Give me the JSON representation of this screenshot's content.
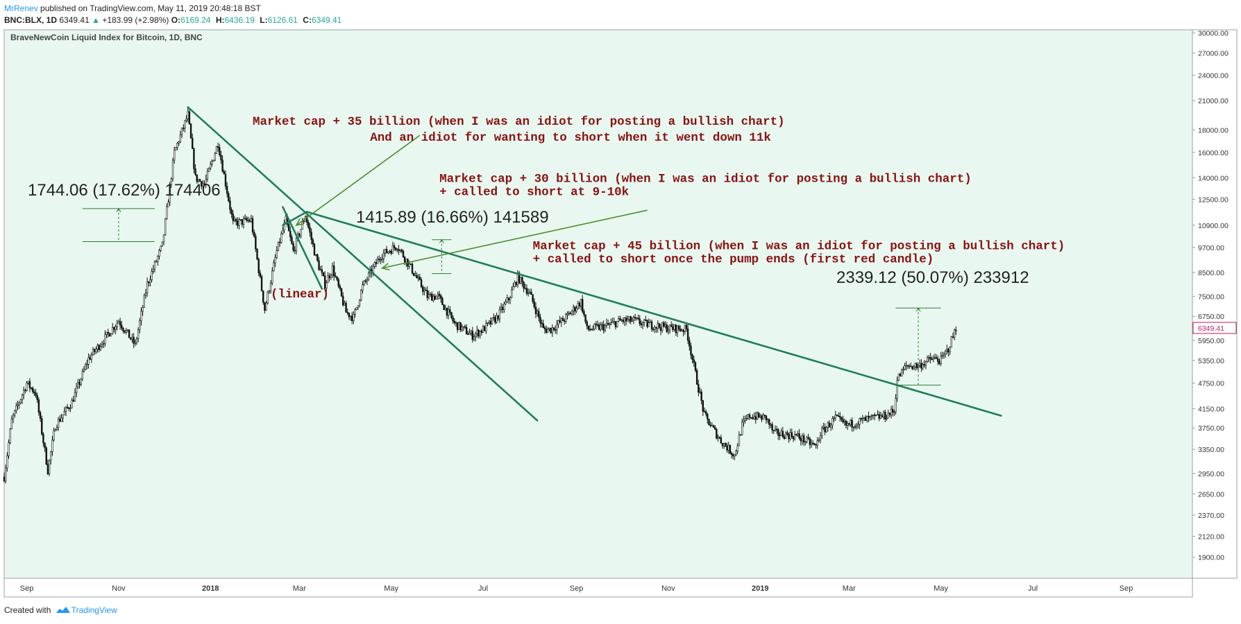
{
  "header": {
    "author": "MrRenev",
    "published_text": "published on TradingView.com, May 11, 2019 20:48:18 BST",
    "symbol_text": "BNC:BLX, 1D",
    "price": "6349.41",
    "change_arrow": "▲",
    "change_text": "+183.99 (+2.98%)",
    "ohlc": [
      {
        "label": "O:",
        "value": "6169.24"
      },
      {
        "label": "H:",
        "value": "6436.19"
      },
      {
        "label": "L:",
        "value": "6126.61"
      },
      {
        "label": "C:",
        "value": "6349.41"
      }
    ]
  },
  "footer": {
    "created_with": "Created with",
    "brand": "TradingView"
  },
  "colors": {
    "background": "#e8f8f0",
    "candle": "#111111",
    "trendline": "#1e7d5a",
    "arrow": "#4d8c2e",
    "annotation_text": "#8b1212",
    "measure": "#2d7a2d",
    "axis_text": "#333333",
    "price_label_text": "#c2185b"
  },
  "chart_data": {
    "type": "candlestick",
    "title": "BraveNewCoin Liquid Index for Bitcoin, 1D, BNC",
    "scale": "log",
    "ylim": [
      1700,
      30500
    ],
    "y_ticks": [
      "30000.00",
      "27000.00",
      "24000.00",
      "21000.00",
      "18000.00",
      "16000.00",
      "14000.00",
      "12500.00",
      "10900.00",
      "9700.00",
      "8500.00",
      "7500.00",
      "6750.00",
      "5950.00",
      "5350.00",
      "4750.00",
      "4150.00",
      "3750.00",
      "3350.00",
      "2950.00",
      "2650.00",
      "2370.00",
      "2120.00",
      "1900.00"
    ],
    "x_range": [
      "2017-08-17",
      "2019-10-15"
    ],
    "x_ticks": [
      {
        "date": "2017-09-01",
        "label": "Sep"
      },
      {
        "date": "2017-11-01",
        "label": "Nov"
      },
      {
        "date": "2018-01-01",
        "label": "2018"
      },
      {
        "date": "2018-03-01",
        "label": "Mar"
      },
      {
        "date": "2018-05-01",
        "label": "May"
      },
      {
        "date": "2018-07-01",
        "label": "Jul"
      },
      {
        "date": "2018-09-01",
        "label": "Sep"
      },
      {
        "date": "2018-11-01",
        "label": "Nov"
      },
      {
        "date": "2019-01-01",
        "label": "2019"
      },
      {
        "date": "2019-03-01",
        "label": "Mar"
      },
      {
        "date": "2019-05-01",
        "label": "May"
      },
      {
        "date": "2019-07-01",
        "label": "Jul"
      },
      {
        "date": "2019-09-01",
        "label": "Sep"
      }
    ],
    "last_price_label": "6349.41",
    "price_path_anchors": [
      [
        "2017-08-17",
        2900
      ],
      [
        "2017-08-22",
        3900
      ],
      [
        "2017-09-01",
        4750
      ],
      [
        "2017-09-07",
        4500
      ],
      [
        "2017-09-15",
        3000
      ],
      [
        "2017-09-20",
        3800
      ],
      [
        "2017-10-01",
        4300
      ],
      [
        "2017-10-12",
        5400
      ],
      [
        "2017-10-21",
        5900
      ],
      [
        "2017-11-01",
        6600
      ],
      [
        "2017-11-12",
        5800
      ],
      [
        "2017-11-20",
        8000
      ],
      [
        "2017-11-30",
        9800
      ],
      [
        "2017-12-08",
        16000
      ],
      [
        "2017-12-17",
        19500
      ],
      [
        "2017-12-22",
        14000
      ],
      [
        "2017-12-28",
        13500
      ],
      [
        "2018-01-06",
        16800
      ],
      [
        "2018-01-16",
        11000
      ],
      [
        "2018-01-28",
        11200
      ],
      [
        "2018-02-06",
        7000
      ],
      [
        "2018-02-14",
        9500
      ],
      [
        "2018-02-20",
        11200
      ],
      [
        "2018-02-25",
        9500
      ],
      [
        "2018-03-05",
        11500
      ],
      [
        "2018-03-12",
        9200
      ],
      [
        "2018-03-18",
        8000
      ],
      [
        "2018-03-23",
        8700
      ],
      [
        "2018-04-01",
        6900
      ],
      [
        "2018-04-06",
        6700
      ],
      [
        "2018-04-12",
        7900
      ],
      [
        "2018-04-24",
        9300
      ],
      [
        "2018-05-05",
        9800
      ],
      [
        "2018-05-15",
        8600
      ],
      [
        "2018-05-25",
        7500
      ],
      [
        "2018-06-01",
        7500
      ],
      [
        "2018-06-12",
        6500
      ],
      [
        "2018-06-24",
        6100
      ],
      [
        "2018-07-01",
        6300
      ],
      [
        "2018-07-10",
        6700
      ],
      [
        "2018-07-18",
        7400
      ],
      [
        "2018-07-24",
        8300
      ],
      [
        "2018-08-01",
        7600
      ],
      [
        "2018-08-10",
        6300
      ],
      [
        "2018-08-15",
        6300
      ],
      [
        "2018-08-25",
        6700
      ],
      [
        "2018-09-04",
        7300
      ],
      [
        "2018-09-08",
        6300
      ],
      [
        "2018-09-20",
        6400
      ],
      [
        "2018-10-01",
        6600
      ],
      [
        "2018-10-10",
        6600
      ],
      [
        "2018-10-15",
        6500
      ],
      [
        "2018-11-01",
        6350
      ],
      [
        "2018-11-13",
        6300
      ],
      [
        "2018-11-20",
        4800
      ],
      [
        "2018-11-25",
        4000
      ],
      [
        "2018-12-06",
        3500
      ],
      [
        "2018-12-15",
        3250
      ],
      [
        "2018-12-20",
        3800
      ],
      [
        "2018-12-25",
        4000
      ],
      [
        "2019-01-05",
        3950
      ],
      [
        "2019-01-10",
        3650
      ],
      [
        "2019-01-25",
        3600
      ],
      [
        "2019-02-07",
        3400
      ],
      [
        "2019-02-10",
        3650
      ],
      [
        "2019-02-20",
        3950
      ],
      [
        "2019-02-27",
        3800
      ],
      [
        "2019-03-10",
        3900
      ],
      [
        "2019-03-25",
        4000
      ],
      [
        "2019-03-31",
        4100
      ],
      [
        "2019-04-02",
        4850
      ],
      [
        "2019-04-08",
        5200
      ],
      [
        "2019-04-16",
        5200
      ],
      [
        "2019-04-25",
        5400
      ],
      [
        "2019-05-01",
        5350
      ],
      [
        "2019-05-06",
        5700
      ],
      [
        "2019-05-11",
        6349
      ]
    ],
    "trendlines": [
      {
        "from": [
          "2017-12-17",
          20300
        ],
        "to": [
          "2018-08-06",
          3900
        ]
      },
      {
        "from": [
          "2018-02-18",
          12000
        ],
        "to": [
          "2018-03-16",
          7800
        ]
      },
      {
        "from": [
          "2018-02-18",
          10900
        ],
        "to": [
          "2018-03-06",
          11700
        ]
      },
      {
        "from": [
          "2018-03-06",
          11700
        ],
        "to": [
          "2019-06-10",
          4000
        ]
      }
    ],
    "arrows": [
      {
        "from": [
          "2018-05-20",
          17500
        ],
        "to": [
          "2018-02-27",
          10900
        ]
      },
      {
        "from": [
          "2018-10-18",
          11800
        ],
        "to": [
          "2018-04-25",
          8700
        ]
      }
    ],
    "measurements": [
      {
        "label": "1744.06 (17.62%) 174406",
        "top": 11900,
        "bottom": 10000,
        "from": "2017-10-08",
        "to": "2017-11-25"
      },
      {
        "label": "1415.89 (16.66%) 141589",
        "top": 10100,
        "bottom": 8450,
        "from": "2018-05-28",
        "to": "2018-06-10"
      },
      {
        "label": "2339.12 (50.07%) 233912",
        "top": 7050,
        "bottom": 4700,
        "from": "2019-04-01",
        "to": "2019-05-01"
      }
    ],
    "annotations": [
      {
        "lines": [
          "Market cap + 35 billion (when I was an idiot for posting a bullish chart)"
        ],
        "anchor": [
          "2018-01-29",
          18500
        ]
      },
      {
        "lines": [
          "And an idiot for wanting to short when it went down 11k"
        ],
        "anchor": [
          "2018-04-17",
          17000
        ]
      },
      {
        "lines": [
          "Market cap + 30 billion (when I was an idiot for posting a bullish chart)",
          "+ called to short at 9-10k"
        ],
        "anchor": [
          "2018-06-02",
          13700
        ]
      },
      {
        "lines": [
          "Market cap + 45 billion (when I was an idiot for posting a bullish chart)",
          "+ called to short once the pump ends (first red candle)"
        ],
        "anchor": [
          "2018-08-03",
          9600
        ]
      },
      {
        "lines": [
          "(linear)"
        ],
        "anchor": [
          "2018-02-10",
          7450
        ]
      }
    ]
  }
}
